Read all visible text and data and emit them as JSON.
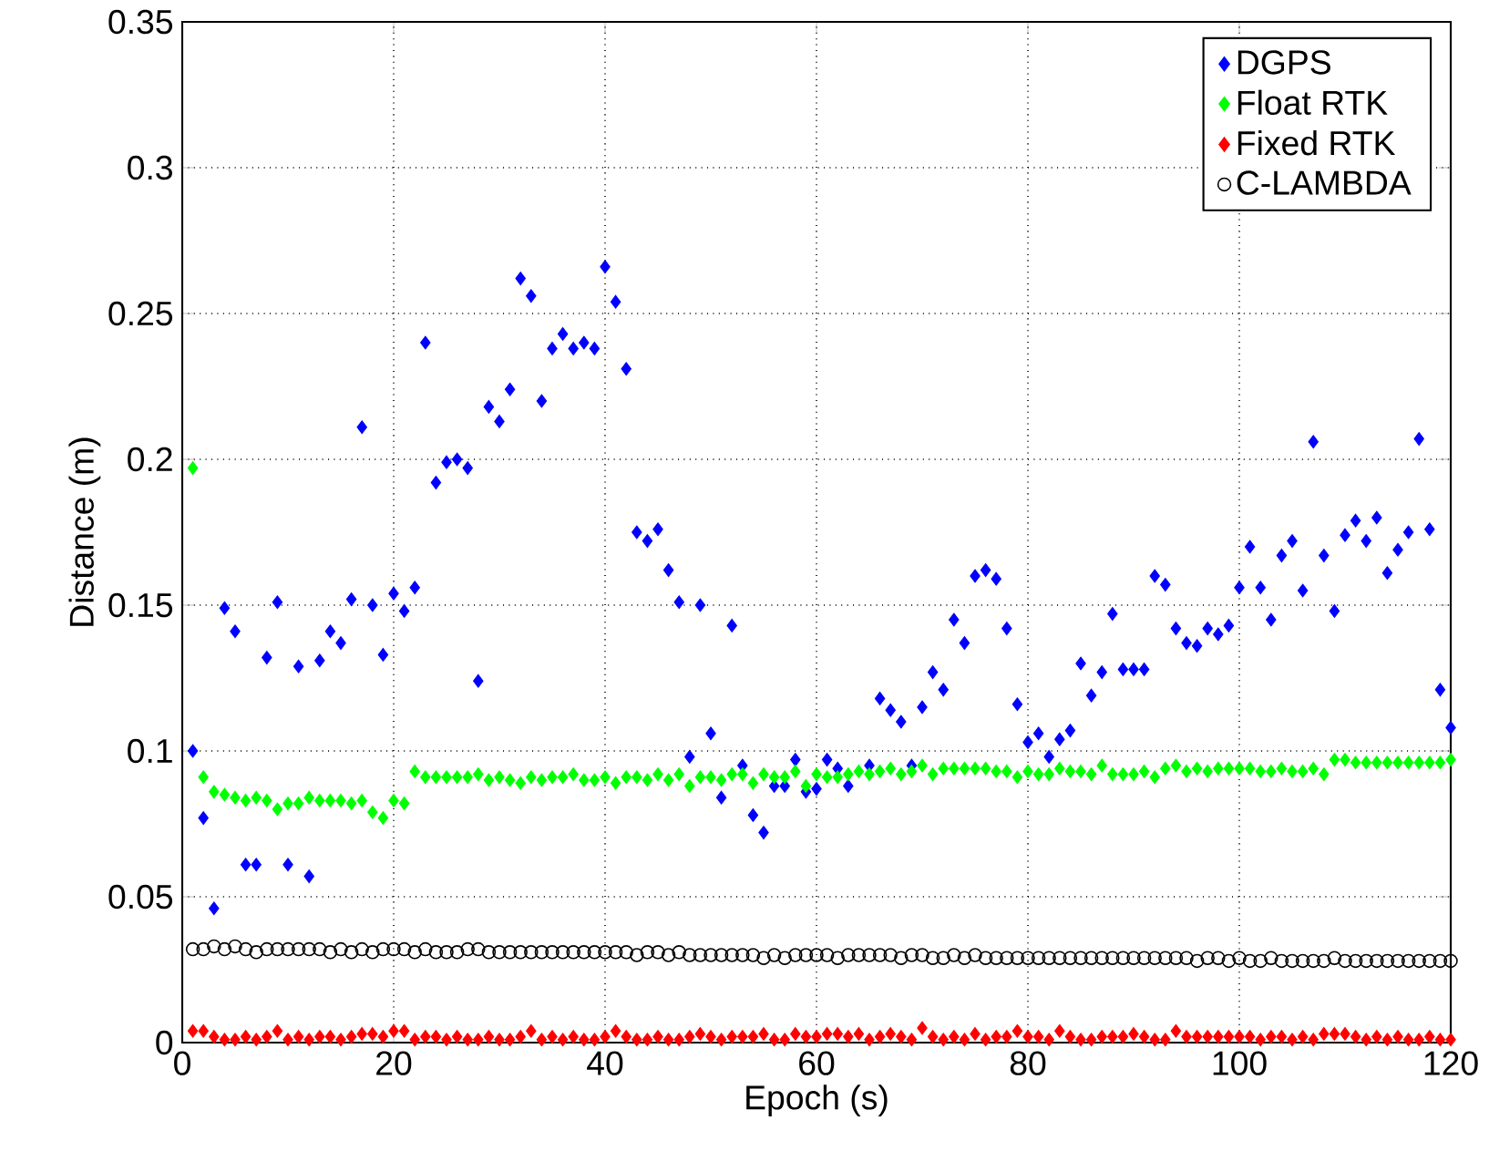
{
  "chart_data": {
    "type": "scatter",
    "xlabel": "Epoch (s)",
    "ylabel": "Distance (m)",
    "x": [
      1,
      2,
      3,
      4,
      5,
      6,
      7,
      8,
      9,
      10,
      11,
      12,
      13,
      14,
      15,
      16,
      17,
      18,
      19,
      20,
      21,
      22,
      23,
      24,
      25,
      26,
      27,
      28,
      29,
      30,
      31,
      32,
      33,
      34,
      35,
      36,
      37,
      38,
      39,
      40,
      41,
      42,
      43,
      44,
      45,
      46,
      47,
      48,
      49,
      50,
      51,
      52,
      53,
      54,
      55,
      56,
      57,
      58,
      59,
      60,
      61,
      62,
      63,
      64,
      65,
      66,
      67,
      68,
      69,
      70,
      71,
      72,
      73,
      74,
      75,
      76,
      77,
      78,
      79,
      80,
      81,
      82,
      83,
      84,
      85,
      86,
      87,
      88,
      89,
      90,
      91,
      92,
      93,
      94,
      95,
      96,
      97,
      98,
      99,
      100,
      101,
      102,
      103,
      104,
      105,
      106,
      107,
      108,
      109,
      110,
      111,
      112,
      113,
      114,
      115,
      116,
      117,
      118,
      119,
      120
    ],
    "series": [
      {
        "name": "DGPS",
        "color": "#0000ff",
        "marker": "diamond",
        "values": [
          0.1,
          0.077,
          0.046,
          0.149,
          0.141,
          0.061,
          0.061,
          0.132,
          0.151,
          0.061,
          0.129,
          0.057,
          0.131,
          0.141,
          0.137,
          0.152,
          0.211,
          0.15,
          0.133,
          0.154,
          0.148,
          0.156,
          0.24,
          0.192,
          0.199,
          0.2,
          0.197,
          0.124,
          0.218,
          0.213,
          0.224,
          0.262,
          0.256,
          0.22,
          0.238,
          0.243,
          0.238,
          0.24,
          0.238,
          0.266,
          0.254,
          0.231,
          0.175,
          0.172,
          0.176,
          0.162,
          0.151,
          0.098,
          0.15,
          0.106,
          0.084,
          0.143,
          0.095,
          0.078,
          0.072,
          0.088,
          0.088,
          0.097,
          0.086,
          0.087,
          0.097,
          0.094,
          0.088,
          null,
          0.095,
          0.118,
          0.114,
          0.11,
          0.095,
          0.115,
          0.127,
          0.121,
          0.145,
          0.137,
          0.16,
          0.162,
          0.159,
          0.142,
          0.116,
          0.103,
          0.106,
          0.098,
          0.104,
          0.107,
          0.13,
          0.119,
          0.127,
          0.147,
          0.128,
          0.128,
          0.128,
          0.16,
          0.157,
          0.142,
          0.137,
          0.136,
          0.142,
          0.14,
          0.143,
          0.156,
          0.17,
          0.156,
          0.145,
          0.167,
          0.172,
          0.155,
          0.206,
          0.167,
          0.148,
          0.174,
          0.179,
          0.172,
          0.18,
          0.161,
          0.169,
          0.175,
          0.207,
          0.176,
          0.121,
          0.108
        ]
      },
      {
        "name": "Float RTK",
        "color": "#00ff00",
        "marker": "diamond",
        "values": [
          0.197,
          0.091,
          0.086,
          0.085,
          0.084,
          0.083,
          0.084,
          0.083,
          0.08,
          0.082,
          0.082,
          0.084,
          0.083,
          0.083,
          0.083,
          0.082,
          0.083,
          0.079,
          0.077,
          0.083,
          0.082,
          0.093,
          0.091,
          0.091,
          0.091,
          0.091,
          0.091,
          0.092,
          0.09,
          0.091,
          0.09,
          0.089,
          0.091,
          0.09,
          0.091,
          0.091,
          0.092,
          0.09,
          0.09,
          0.091,
          0.089,
          0.091,
          0.091,
          0.09,
          0.092,
          0.09,
          0.092,
          0.088,
          0.091,
          0.091,
          0.09,
          0.092,
          0.092,
          0.089,
          0.092,
          0.091,
          0.091,
          0.093,
          0.088,
          0.092,
          0.091,
          0.091,
          0.092,
          0.093,
          0.092,
          0.093,
          0.094,
          0.092,
          0.093,
          0.095,
          0.092,
          0.094,
          0.094,
          0.094,
          0.094,
          0.094,
          0.093,
          0.093,
          0.091,
          0.093,
          0.092,
          0.092,
          0.094,
          0.093,
          0.093,
          0.092,
          0.095,
          0.092,
          0.092,
          0.092,
          0.093,
          0.091,
          0.094,
          0.095,
          0.093,
          0.094,
          0.093,
          0.094,
          0.094,
          0.094,
          0.094,
          0.093,
          0.093,
          0.094,
          0.093,
          0.093,
          0.094,
          0.092,
          0.097,
          0.097,
          0.096,
          0.096,
          0.096,
          0.096,
          0.096,
          0.096,
          0.096,
          0.096,
          0.096,
          0.097
        ]
      },
      {
        "name": "Fixed RTK",
        "color": "#ff0000",
        "marker": "diamond",
        "values": [
          0.004,
          0.004,
          0.002,
          0.001,
          0.001,
          0.002,
          0.001,
          0.002,
          0.004,
          0.001,
          0.002,
          0.001,
          0.002,
          0.002,
          0.001,
          0.002,
          0.003,
          0.003,
          0.002,
          0.004,
          0.004,
          0.001,
          0.002,
          0.002,
          0.001,
          0.002,
          0.001,
          0.001,
          0.002,
          0.001,
          0.001,
          0.002,
          0.004,
          0.001,
          0.002,
          0.001,
          0.002,
          0.001,
          0.001,
          0.002,
          0.004,
          0.002,
          0.001,
          0.001,
          0.002,
          0.001,
          0.001,
          0.002,
          0.003,
          0.002,
          0.001,
          0.002,
          0.002,
          0.002,
          0.003,
          0.001,
          0.001,
          0.003,
          0.002,
          0.002,
          0.003,
          0.003,
          0.002,
          0.003,
          0.001,
          0.002,
          0.003,
          0.002,
          0.001,
          0.005,
          0.002,
          0.001,
          0.002,
          0.001,
          0.003,
          0.001,
          0.002,
          0.002,
          0.004,
          0.002,
          0.002,
          0.001,
          0.004,
          0.002,
          0.001,
          0.001,
          0.002,
          0.002,
          0.002,
          0.003,
          0.002,
          0.001,
          0.001,
          0.004,
          0.002,
          0.002,
          0.002,
          0.002,
          0.002,
          0.002,
          0.002,
          0.001,
          0.002,
          0.002,
          0.001,
          0.002,
          0.001,
          0.003,
          0.003,
          0.003,
          0.002,
          0.001,
          0.002,
          0.001,
          0.002,
          0.001,
          0.001,
          0.002,
          0.001,
          0.001
        ]
      },
      {
        "name": "C-LAMBDA",
        "color": "#000000",
        "marker": "circle",
        "values": [
          0.032,
          0.032,
          0.033,
          0.032,
          0.033,
          0.032,
          0.031,
          0.032,
          0.032,
          0.032,
          0.032,
          0.032,
          0.032,
          0.031,
          0.032,
          0.031,
          0.032,
          0.031,
          0.032,
          0.032,
          0.032,
          0.031,
          0.032,
          0.031,
          0.031,
          0.031,
          0.032,
          0.032,
          0.031,
          0.031,
          0.031,
          0.031,
          0.031,
          0.031,
          0.031,
          0.031,
          0.031,
          0.031,
          0.031,
          0.031,
          0.031,
          0.031,
          0.03,
          0.031,
          0.031,
          0.03,
          0.031,
          0.03,
          0.03,
          0.03,
          0.03,
          0.03,
          0.03,
          0.03,
          0.029,
          0.03,
          0.029,
          0.03,
          0.03,
          0.03,
          0.03,
          0.029,
          0.03,
          0.03,
          0.03,
          0.03,
          0.03,
          0.029,
          0.03,
          0.03,
          0.029,
          0.029,
          0.03,
          0.029,
          0.03,
          0.029,
          0.029,
          0.029,
          0.029,
          0.029,
          0.029,
          0.029,
          0.029,
          0.029,
          0.029,
          0.029,
          0.029,
          0.029,
          0.029,
          0.029,
          0.029,
          0.029,
          0.029,
          0.029,
          0.029,
          0.028,
          0.029,
          0.029,
          0.028,
          0.029,
          0.028,
          0.028,
          0.029,
          0.028,
          0.028,
          0.028,
          0.028,
          0.028,
          0.029,
          0.028,
          0.028,
          0.028,
          0.028,
          0.028,
          0.028,
          0.028,
          0.028,
          0.028,
          0.028,
          0.028
        ]
      }
    ],
    "xlim": [
      0,
      120
    ],
    "xticks": [
      0,
      20,
      40,
      60,
      80,
      100,
      120
    ],
    "ylim": [
      0,
      0.35
    ],
    "yticks": [
      0,
      0.05,
      0.1,
      0.15,
      0.2,
      0.25,
      0.3,
      0.35
    ],
    "grid": true,
    "legend": "top right"
  }
}
